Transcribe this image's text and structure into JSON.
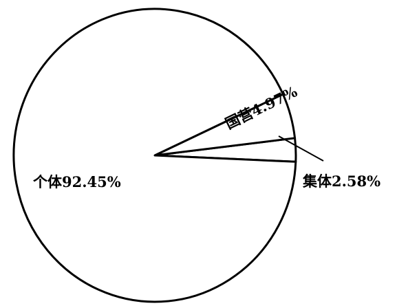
{
  "chart_data": {
    "type": "pie",
    "title": "",
    "slices": [
      {
        "label": "个体",
        "value": 92.45,
        "display": "个体92.45%"
      },
      {
        "label": "国营",
        "value": 4.97,
        "display": "国营4.97%"
      },
      {
        "label": "集体",
        "value": 2.58,
        "display": "集体2.58%"
      }
    ],
    "unit": "%",
    "legend": "none",
    "colors": {
      "fill": "#ffffff",
      "stroke": "#000000"
    }
  }
}
